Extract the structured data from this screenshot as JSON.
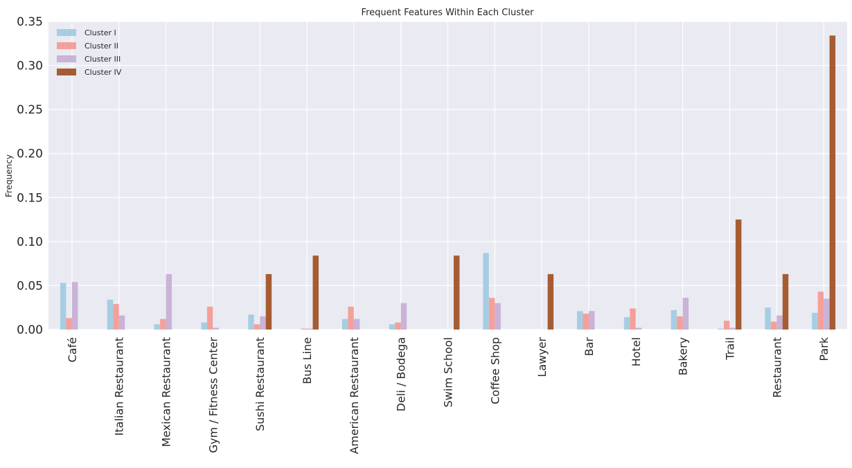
{
  "chart_data": {
    "type": "bar",
    "title": "Frequent Features Within Each Cluster",
    "xlabel": "",
    "ylabel": "Frequency",
    "ylim": [
      0,
      0.35
    ],
    "yticks": [
      "0.00",
      "0.05",
      "0.10",
      "0.15",
      "0.20",
      "0.25",
      "0.30",
      "0.35"
    ],
    "grid": true,
    "legend_position": "top-left",
    "categories": [
      "Café",
      "Italian Restaurant",
      "Mexican Restaurant",
      "Gym / Fitness Center",
      "Sushi Restaurant",
      "Bus Line",
      "American Restaurant",
      "Deli / Bodega",
      "Swim School",
      "Coffee Shop",
      "Lawyer",
      "Bar",
      "Hotel",
      "Bakery",
      "Trail",
      "Restaurant",
      "Park"
    ],
    "series": [
      {
        "name": "Cluster I",
        "color": "#a6cee3",
        "values": [
          0.053,
          0.034,
          0.006,
          0.008,
          0.017,
          0.0,
          0.012,
          0.006,
          0.0,
          0.087,
          0.0,
          0.021,
          0.014,
          0.022,
          0.001,
          0.025,
          0.019
        ]
      },
      {
        "name": "Cluster II",
        "color": "#f4a09a",
        "values": [
          0.013,
          0.029,
          0.012,
          0.026,
          0.006,
          0.001,
          0.026,
          0.008,
          0.0,
          0.036,
          0.0,
          0.018,
          0.024,
          0.015,
          0.01,
          0.009,
          0.043
        ]
      },
      {
        "name": "Cluster III",
        "color": "#c9b3d6",
        "values": [
          0.054,
          0.016,
          0.063,
          0.002,
          0.015,
          0.001,
          0.012,
          0.03,
          0.0,
          0.03,
          0.0,
          0.021,
          0.002,
          0.036,
          0.002,
          0.016,
          0.035
        ]
      },
      {
        "name": "Cluster IV",
        "color": "#a65c32",
        "values": [
          0.0,
          0.0,
          0.0,
          0.0,
          0.063,
          0.084,
          0.0,
          0.0,
          0.084,
          0.0,
          0.063,
          0.0,
          0.0,
          0.0,
          0.125,
          0.063,
          0.334
        ]
      }
    ]
  }
}
